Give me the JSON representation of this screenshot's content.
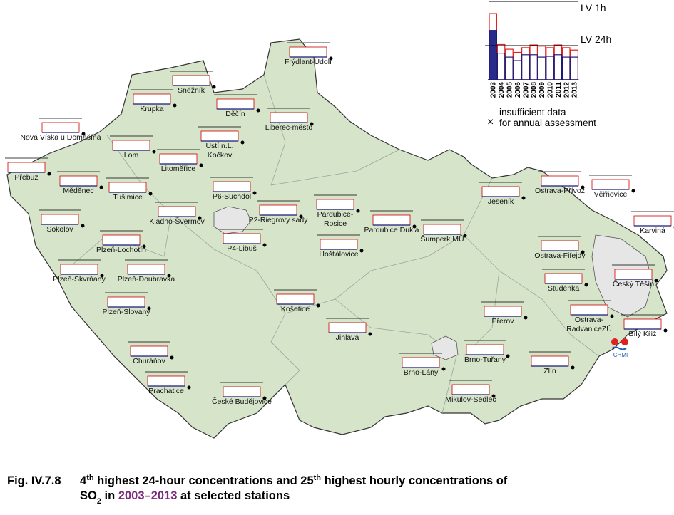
{
  "map": {
    "stations": [
      {
        "label": [
          "Frýdlant-Údolí"
        ]
      },
      {
        "label": [
          "Sněžník"
        ]
      },
      {
        "label": [
          "Krupka"
        ]
      },
      {
        "label": [
          "Děčín"
        ]
      },
      {
        "label": [
          "Liberec-město"
        ]
      },
      {
        "label": [
          "Nová Víska u Domašína"
        ]
      },
      {
        "label": [
          "Lom"
        ]
      },
      {
        "label": [
          "Ústí n.L.",
          "Kočkov"
        ]
      },
      {
        "label": [
          "Litoměřice"
        ]
      },
      {
        "label": [
          "Přebuz"
        ]
      },
      {
        "label": [
          "Měděnec"
        ]
      },
      {
        "label": [
          "Tušimice"
        ]
      },
      {
        "label": [
          "P6-Suchdol"
        ]
      },
      {
        "label": [
          "Kladno-Švermov"
        ]
      },
      {
        "label": [
          "P2-Riegrovy sady"
        ]
      },
      {
        "label": [
          "Pardubice-",
          "Rosice"
        ]
      },
      {
        "label": [
          "Pardubice Dukla"
        ]
      },
      {
        "label": [
          "Šumperk MŮ"
        ]
      },
      {
        "label": [
          "Jeseník"
        ]
      },
      {
        "label": [
          "Ostrava-Přívoz"
        ]
      },
      {
        "label": [
          "Věřňovice"
        ]
      },
      {
        "label": [
          "Karviná"
        ]
      },
      {
        "label": [
          "Sokolov"
        ]
      },
      {
        "label": [
          "Plzeň-Lochotín"
        ]
      },
      {
        "label": [
          "P4-Libuš"
        ]
      },
      {
        "label": [
          "Hošťálovice"
        ]
      },
      {
        "label": [
          "Ostrava-Fifejdy"
        ]
      },
      {
        "label": [
          "Studénka"
        ]
      },
      {
        "label": [
          "Český Těšín"
        ]
      },
      {
        "label": [
          "Plzeň-Skvrňany"
        ]
      },
      {
        "label": [
          "Plzeň-Doubravka"
        ]
      },
      {
        "label": [
          "Plzeň-Slovany"
        ]
      },
      {
        "label": [
          "Košetice"
        ]
      },
      {
        "label": [
          "Přerov"
        ]
      },
      {
        "label": [
          "Ostrava-",
          "RadvaniceZÚ"
        ]
      },
      {
        "label": [
          "Bílý Kříž"
        ]
      },
      {
        "label": [
          "Jihlava"
        ]
      },
      {
        "label": [
          "Churáňov"
        ]
      },
      {
        "label": [
          "Brno-Tuřany"
        ]
      },
      {
        "label": [
          "Brno-Lány"
        ]
      },
      {
        "label": [
          "Zlín"
        ]
      },
      {
        "label": [
          "Prachatice"
        ]
      },
      {
        "label": [
          "Mikulov-Sedlec"
        ]
      },
      {
        "label": [
          "České Budějovice"
        ]
      }
    ],
    "logo": "CHMI"
  },
  "legend": {
    "limit_1h": "LV 1h",
    "limit_24h": "LV 24h",
    "years": [
      "2003",
      "2004",
      "2005",
      "2006",
      "2007",
      "2008",
      "2009",
      "2010",
      "2011",
      "2012",
      "2013"
    ],
    "ylim": [
      0,
      100
    ],
    "limit_values": [
      100,
      43.6
    ],
    "hourly": [
      84.5,
      45,
      39,
      35,
      41,
      44.5,
      43,
      41,
      44.5,
      41,
      38
    ],
    "daily": [
      63,
      34,
      29,
      24.5,
      32,
      32,
      29,
      30,
      32,
      29,
      29
    ],
    "marker": "×",
    "marker_text": [
      "insufficient data",
      "for annual assessment"
    ]
  },
  "caption": {
    "figure": "Fig. IV.7.8",
    "line1": [
      "4",
      "th",
      " highest 24-hour concentrations and 25",
      "th",
      " highest hourly concentrations of"
    ],
    "line2": [
      "SO",
      "2",
      " in ",
      "2003–2013",
      " at selected stations"
    ]
  }
}
